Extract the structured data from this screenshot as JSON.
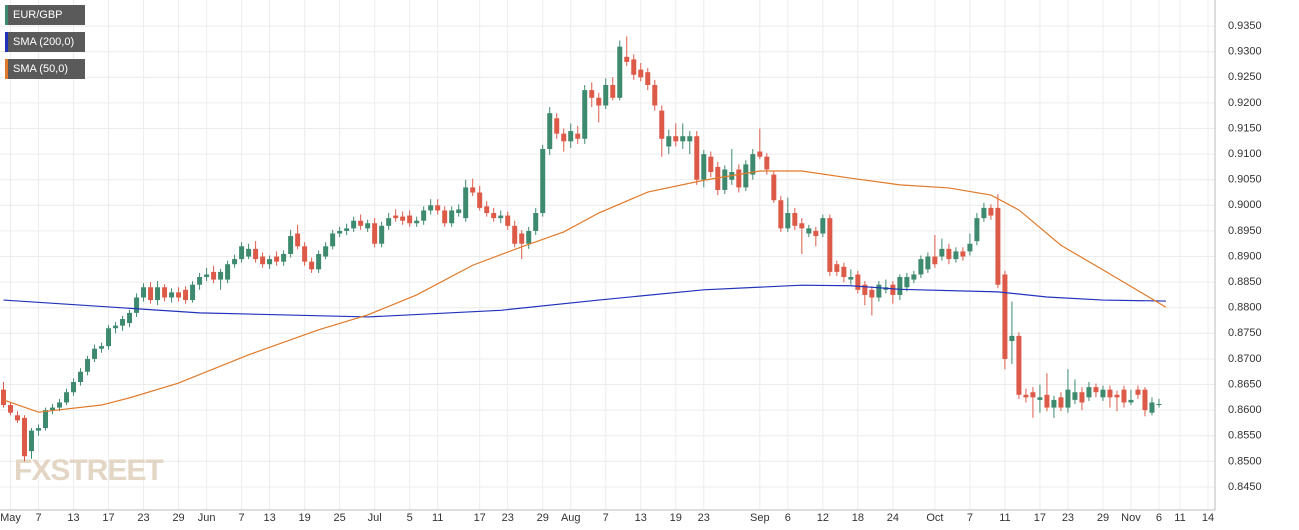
{
  "chart_data": {
    "type": "candlestick",
    "watermark": "FXSTREET",
    "up_color": "#3e8a6e",
    "down_color": "#dd5a48",
    "grid": true,
    "xlim": [
      -0.5,
      173
    ],
    "xticks": [
      {
        "value": 1,
        "label": "May"
      },
      {
        "value": 5,
        "label": "7"
      },
      {
        "value": 10,
        "label": "13"
      },
      {
        "value": 15,
        "label": "17"
      },
      {
        "value": 20,
        "label": "23"
      },
      {
        "value": 25,
        "label": "29"
      },
      {
        "value": 29,
        "label": "Jun"
      },
      {
        "value": 34,
        "label": "7"
      },
      {
        "value": 38,
        "label": "13"
      },
      {
        "value": 43,
        "label": "19"
      },
      {
        "value": 48,
        "label": "25"
      },
      {
        "value": 53,
        "label": "Jul"
      },
      {
        "value": 58,
        "label": "5"
      },
      {
        "value": 62,
        "label": "11"
      },
      {
        "value": 68,
        "label": "17"
      },
      {
        "value": 72,
        "label": "23"
      },
      {
        "value": 77,
        "label": "29"
      },
      {
        "value": 81,
        "label": "Aug"
      },
      {
        "value": 86,
        "label": "7"
      },
      {
        "value": 91,
        "label": "13"
      },
      {
        "value": 96,
        "label": "19"
      },
      {
        "value": 100,
        "label": "23"
      },
      {
        "value": 108,
        "label": "Sep"
      },
      {
        "value": 112,
        "label": "6"
      },
      {
        "value": 117,
        "label": "12"
      },
      {
        "value": 122,
        "label": "18"
      },
      {
        "value": 127,
        "label": "24"
      },
      {
        "value": 133,
        "label": "Oct"
      },
      {
        "value": 138,
        "label": "7"
      },
      {
        "value": 143,
        "label": "11"
      },
      {
        "value": 148,
        "label": "17"
      },
      {
        "value": 152,
        "label": "23"
      },
      {
        "value": 157,
        "label": "29"
      },
      {
        "value": 161,
        "label": "Nov"
      },
      {
        "value": 165,
        "label": "6"
      },
      {
        "value": 168,
        "label": "11"
      },
      {
        "value": 172,
        "label": "14"
      }
    ],
    "ylim": [
      0.8405,
      0.9401
    ],
    "yticks": [
      {
        "value": 0.845,
        "label": "0.8450"
      },
      {
        "value": 0.85,
        "label": "0.8500"
      },
      {
        "value": 0.855,
        "label": "0.8550"
      },
      {
        "value": 0.86,
        "label": "0.8600"
      },
      {
        "value": 0.865,
        "label": "0.8650"
      },
      {
        "value": 0.87,
        "label": "0.8700"
      },
      {
        "value": 0.875,
        "label": "0.8750"
      },
      {
        "value": 0.88,
        "label": "0.8800"
      },
      {
        "value": 0.885,
        "label": "0.8850"
      },
      {
        "value": 0.89,
        "label": "0.8900"
      },
      {
        "value": 0.895,
        "label": "0.8950"
      },
      {
        "value": 0.9,
        "label": "0.9000"
      },
      {
        "value": 0.905,
        "label": "0.9050"
      },
      {
        "value": 0.91,
        "label": "0.9100"
      },
      {
        "value": 0.915,
        "label": "0.9150"
      },
      {
        "value": 0.92,
        "label": "0.9200"
      },
      {
        "value": 0.925,
        "label": "0.9250"
      },
      {
        "value": 0.93,
        "label": "0.9300"
      },
      {
        "value": 0.935,
        "label": "0.9350"
      }
    ],
    "candle_name": "EUR/GBP",
    "candle_legend_color": "#3e8a6e",
    "candles": [
      [
        0.864,
        0.8655,
        0.8605,
        0.861
      ],
      [
        0.861,
        0.8615,
        0.859,
        0.8595
      ],
      [
        0.859,
        0.8598,
        0.8575,
        0.858
      ],
      [
        0.8585,
        0.859,
        0.85,
        0.851
      ],
      [
        0.852,
        0.8565,
        0.8505,
        0.856
      ],
      [
        0.856,
        0.8572,
        0.855,
        0.8565
      ],
      [
        0.8565,
        0.8605,
        0.856,
        0.86
      ],
      [
        0.86,
        0.8612,
        0.8592,
        0.8605
      ],
      [
        0.8605,
        0.8622,
        0.8598,
        0.8615
      ],
      [
        0.8615,
        0.8642,
        0.861,
        0.8635
      ],
      [
        0.8635,
        0.8662,
        0.8628,
        0.8655
      ],
      [
        0.8655,
        0.8682,
        0.8648,
        0.8675
      ],
      [
        0.8675,
        0.8706,
        0.8668,
        0.87
      ],
      [
        0.87,
        0.8728,
        0.8694,
        0.872
      ],
      [
        0.872,
        0.8732,
        0.8712,
        0.8725
      ],
      [
        0.8725,
        0.8766,
        0.8718,
        0.876
      ],
      [
        0.876,
        0.8772,
        0.875,
        0.8765
      ],
      [
        0.8765,
        0.8784,
        0.8755,
        0.8778
      ],
      [
        0.877,
        0.8796,
        0.8762,
        0.879
      ],
      [
        0.879,
        0.8828,
        0.8782,
        0.882
      ],
      [
        0.882,
        0.8848,
        0.8812,
        0.884
      ],
      [
        0.884,
        0.885,
        0.8808,
        0.8815
      ],
      [
        0.8815,
        0.8852,
        0.8805,
        0.884
      ],
      [
        0.884,
        0.8846,
        0.8812,
        0.882
      ],
      [
        0.882,
        0.8838,
        0.881,
        0.883
      ],
      [
        0.883,
        0.884,
        0.8812,
        0.882
      ],
      [
        0.8835,
        0.8842,
        0.8808,
        0.8815
      ],
      [
        0.8815,
        0.8852,
        0.881,
        0.8845
      ],
      [
        0.8845,
        0.8868,
        0.8835,
        0.886
      ],
      [
        0.886,
        0.8878,
        0.8852,
        0.8865
      ],
      [
        0.887,
        0.8882,
        0.8848,
        0.8855
      ],
      [
        0.8855,
        0.8876,
        0.8835,
        0.887
      ],
      [
        0.8855,
        0.8892,
        0.8848,
        0.8885
      ],
      [
        0.8885,
        0.8904,
        0.8878,
        0.8895
      ],
      [
        0.8895,
        0.8928,
        0.8888,
        0.892
      ],
      [
        0.89,
        0.8925,
        0.8895,
        0.8915
      ],
      [
        0.8915,
        0.893,
        0.8888,
        0.8895
      ],
      [
        0.89,
        0.8908,
        0.8878,
        0.8885
      ],
      [
        0.8885,
        0.8902,
        0.8876,
        0.8895
      ],
      [
        0.89,
        0.891,
        0.8882,
        0.889
      ],
      [
        0.889,
        0.8912,
        0.8882,
        0.8905
      ],
      [
        0.8905,
        0.8952,
        0.8898,
        0.894
      ],
      [
        0.8945,
        0.8962,
        0.8914,
        0.892
      ],
      [
        0.892,
        0.8928,
        0.8882,
        0.889
      ],
      [
        0.889,
        0.8898,
        0.8868,
        0.8875
      ],
      [
        0.8875,
        0.8912,
        0.8868,
        0.8905
      ],
      [
        0.89,
        0.8928,
        0.8895,
        0.892
      ],
      [
        0.892,
        0.8952,
        0.8914,
        0.8945
      ],
      [
        0.8945,
        0.8958,
        0.8938,
        0.895
      ],
      [
        0.895,
        0.8964,
        0.8942,
        0.8955
      ],
      [
        0.8955,
        0.8978,
        0.8948,
        0.897
      ],
      [
        0.897,
        0.8982,
        0.8952,
        0.896
      ],
      [
        0.8955,
        0.8972,
        0.8948,
        0.8965
      ],
      [
        0.8965,
        0.8975,
        0.8918,
        0.8925
      ],
      [
        0.8925,
        0.8968,
        0.8918,
        0.896
      ],
      [
        0.896,
        0.8985,
        0.8952,
        0.8975
      ],
      [
        0.898,
        0.8992,
        0.8968,
        0.8975
      ],
      [
        0.8978,
        0.8988,
        0.8962,
        0.897
      ],
      [
        0.898,
        0.899,
        0.8958,
        0.8965
      ],
      [
        0.8965,
        0.8978,
        0.8958,
        0.897
      ],
      [
        0.897,
        0.8998,
        0.8962,
        0.899
      ],
      [
        0.899,
        0.9012,
        0.8982,
        0.9
      ],
      [
        0.9,
        0.9012,
        0.8982,
        0.899
      ],
      [
        0.899,
        0.8998,
        0.8958,
        0.8965
      ],
      [
        0.8965,
        0.8998,
        0.8958,
        0.899
      ],
      [
        0.8985,
        0.9002,
        0.8978,
        0.8992
      ],
      [
        0.8975,
        0.905,
        0.8968,
        0.9035
      ],
      [
        0.9035,
        0.9052,
        0.9018,
        0.9025
      ],
      [
        0.9025,
        0.9038,
        0.899,
        0.8995
      ],
      [
        0.8998,
        0.9008,
        0.8978,
        0.8985
      ],
      [
        0.8985,
        0.8995,
        0.8968,
        0.8975
      ],
      [
        0.8975,
        0.899,
        0.8965,
        0.898
      ],
      [
        0.898,
        0.8988,
        0.8952,
        0.896
      ],
      [
        0.896,
        0.897,
        0.8918,
        0.8925
      ],
      [
        0.8945,
        0.8952,
        0.8895,
        0.8925
      ],
      [
        0.8925,
        0.8958,
        0.8915,
        0.895
      ],
      [
        0.895,
        0.8995,
        0.8942,
        0.8985
      ],
      [
        0.8985,
        0.9118,
        0.8978,
        0.911
      ],
      [
        0.911,
        0.9192,
        0.9098,
        0.918
      ],
      [
        0.917,
        0.918,
        0.913,
        0.914
      ],
      [
        0.914,
        0.915,
        0.9105,
        0.9125
      ],
      [
        0.9125,
        0.916,
        0.9112,
        0.9145
      ],
      [
        0.914,
        0.9155,
        0.912,
        0.913
      ],
      [
        0.913,
        0.9235,
        0.912,
        0.9225
      ],
      [
        0.9225,
        0.924,
        0.9192,
        0.921
      ],
      [
        0.921,
        0.922,
        0.9162,
        0.9195
      ],
      [
        0.9195,
        0.9248,
        0.9188,
        0.9235
      ],
      [
        0.9235,
        0.925,
        0.9205,
        0.921
      ],
      [
        0.921,
        0.9322,
        0.9205,
        0.931
      ],
      [
        0.929,
        0.933,
        0.9272,
        0.928
      ],
      [
        0.9285,
        0.9295,
        0.9245,
        0.9255
      ],
      [
        0.9265,
        0.9278,
        0.9242,
        0.925
      ],
      [
        0.926,
        0.9268,
        0.9225,
        0.9235
      ],
      [
        0.9235,
        0.9245,
        0.9185,
        0.9195
      ],
      [
        0.9185,
        0.9195,
        0.9095,
        0.913
      ],
      [
        0.9115,
        0.9148,
        0.91,
        0.9135
      ],
      [
        0.9135,
        0.916,
        0.9115,
        0.9125
      ],
      [
        0.9125,
        0.916,
        0.911,
        0.9135
      ],
      [
        0.9125,
        0.9145,
        0.91,
        0.9135
      ],
      [
        0.9135,
        0.9145,
        0.904,
        0.905
      ],
      [
        0.905,
        0.9108,
        0.9035,
        0.91
      ],
      [
        0.9095,
        0.9105,
        0.9055,
        0.9065
      ],
      [
        0.9075,
        0.9085,
        0.902,
        0.903
      ],
      [
        0.903,
        0.9078,
        0.9022,
        0.907
      ],
      [
        0.905,
        0.911,
        0.904,
        0.9065
      ],
      [
        0.907,
        0.908,
        0.9025,
        0.9035
      ],
      [
        0.9035,
        0.9088,
        0.9028,
        0.908
      ],
      [
        0.906,
        0.911,
        0.905,
        0.91
      ],
      [
        0.9105,
        0.915,
        0.909,
        0.9095
      ],
      [
        0.9095,
        0.9102,
        0.906,
        0.907
      ],
      [
        0.906,
        0.9068,
        0.9005,
        0.901
      ],
      [
        0.901,
        0.9018,
        0.8948,
        0.8955
      ],
      [
        0.8955,
        0.9015,
        0.8948,
        0.8985
      ],
      [
        0.8985,
        0.8995,
        0.8952,
        0.896
      ],
      [
        0.8965,
        0.8975,
        0.8905,
        0.8955
      ],
      [
        0.8945,
        0.8962,
        0.8938,
        0.8955
      ],
      [
        0.895,
        0.8958,
        0.892,
        0.894
      ],
      [
        0.8945,
        0.8982,
        0.8938,
        0.8975
      ],
      [
        0.8975,
        0.8982,
        0.8862,
        0.887
      ],
      [
        0.8885,
        0.8892,
        0.8862,
        0.887
      ],
      [
        0.888,
        0.8888,
        0.885,
        0.886
      ],
      [
        0.8855,
        0.8875,
        0.8845,
        0.886
      ],
      [
        0.8865,
        0.8872,
        0.8828,
        0.8835
      ],
      [
        0.8845,
        0.8852,
        0.8805,
        0.8825
      ],
      [
        0.8835,
        0.8842,
        0.8785,
        0.882
      ],
      [
        0.882,
        0.8852,
        0.8812,
        0.8845
      ],
      [
        0.8835,
        0.8855,
        0.8828,
        0.884
      ],
      [
        0.8845,
        0.8852,
        0.8808,
        0.8825
      ],
      [
        0.8825,
        0.8865,
        0.8815,
        0.886
      ],
      [
        0.884,
        0.8868,
        0.8832,
        0.886
      ],
      [
        0.8855,
        0.8872,
        0.8848,
        0.8865
      ],
      [
        0.8865,
        0.8902,
        0.8858,
        0.8895
      ],
      [
        0.8875,
        0.8908,
        0.8868,
        0.89
      ],
      [
        0.89,
        0.8942,
        0.8878,
        0.8885
      ],
      [
        0.89,
        0.8935,
        0.8892,
        0.8915
      ],
      [
        0.8915,
        0.8925,
        0.8885,
        0.8895
      ],
      [
        0.8895,
        0.8918,
        0.8888,
        0.891
      ],
      [
        0.891,
        0.8918,
        0.8892,
        0.89
      ],
      [
        0.891,
        0.8945,
        0.8902,
        0.8925
      ],
      [
        0.893,
        0.8985,
        0.8922,
        0.8975
      ],
      [
        0.8975,
        0.9005,
        0.8968,
        0.8995
      ],
      [
        0.8995,
        0.9002,
        0.8972,
        0.898
      ],
      [
        0.8995,
        0.9022,
        0.8838,
        0.8845
      ],
      [
        0.8865,
        0.8872,
        0.868,
        0.87
      ],
      [
        0.8735,
        0.8812,
        0.869,
        0.8745
      ],
      [
        0.8745,
        0.8752,
        0.8622,
        0.863
      ],
      [
        0.863,
        0.8642,
        0.8615,
        0.8625
      ],
      [
        0.8635,
        0.8645,
        0.8585,
        0.8625
      ],
      [
        0.862,
        0.865,
        0.8595,
        0.8625
      ],
      [
        0.863,
        0.8672,
        0.8598,
        0.8605
      ],
      [
        0.8605,
        0.8628,
        0.8585,
        0.862
      ],
      [
        0.8625,
        0.8635,
        0.8598,
        0.8605
      ],
      [
        0.8605,
        0.868,
        0.8595,
        0.864
      ],
      [
        0.862,
        0.866,
        0.8612,
        0.8635
      ],
      [
        0.8635,
        0.8645,
        0.86,
        0.8615
      ],
      [
        0.8625,
        0.8655,
        0.8618,
        0.8645
      ],
      [
        0.8645,
        0.8652,
        0.8625,
        0.8635
      ],
      [
        0.8625,
        0.8648,
        0.8618,
        0.864
      ],
      [
        0.864,
        0.8648,
        0.8605,
        0.8625
      ],
      [
        0.863,
        0.8638,
        0.8598,
        0.8625
      ],
      [
        0.864,
        0.8648,
        0.8605,
        0.8615
      ],
      [
        0.8615,
        0.864,
        0.861,
        0.862
      ],
      [
        0.864,
        0.8648,
        0.8622,
        0.863
      ],
      [
        0.864,
        0.8645,
        0.8588,
        0.86
      ],
      [
        0.8595,
        0.8625,
        0.859,
        0.8615
      ],
      [
        0.861,
        0.8622,
        0.8605,
        0.8612
      ]
    ],
    "series": [
      {
        "name": "SMA (200,0)",
        "color": "#2233bb",
        "x": [
          0,
          28,
          52,
          71,
          85,
          100,
          114,
          121,
          128,
          142,
          149,
          157,
          166
        ],
        "values": [
          0.8815,
          0.879,
          0.8782,
          0.8795,
          0.8815,
          0.8835,
          0.8844,
          0.8843,
          0.8836,
          0.8831,
          0.8821,
          0.8815,
          0.8813
        ]
      },
      {
        "name": "SMA (50,0)",
        "color": "#e07a2a",
        "x": [
          0,
          5,
          14,
          18,
          25,
          35,
          45,
          52,
          59,
          67,
          74,
          80,
          85,
          92,
          100,
          108,
          114,
          121,
          128,
          135,
          141,
          145,
          151,
          157,
          166
        ],
        "values": [
          0.862,
          0.8596,
          0.861,
          0.8624,
          0.8653,
          0.8708,
          0.8757,
          0.8786,
          0.8825,
          0.8883,
          0.8919,
          0.8948,
          0.8985,
          0.9026,
          0.9049,
          0.9067,
          0.9067,
          0.9053,
          0.904,
          0.9034,
          0.902,
          0.8991,
          0.8922,
          0.8874,
          0.8801
        ]
      }
    ]
  }
}
